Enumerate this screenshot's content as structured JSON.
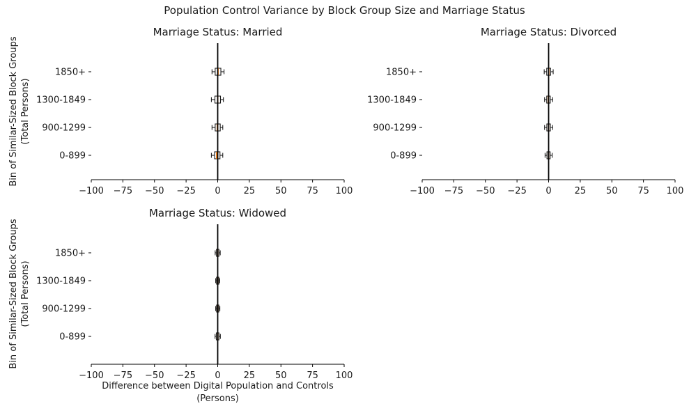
{
  "suptitle": "Population Control Variance by Block Group Size and Marriage Status",
  "axes": {
    "xlabel_line1": "Difference between Digital Population and Controls",
    "xlabel_line2": "(Persons)",
    "ylabel_line1": "Bin of Similar-Sized Block Groups",
    "ylabel_line2": "(Total Persons)"
  },
  "colors": {
    "median": "#ff7f0e",
    "box_edge": "#1c1c1c",
    "refline": "#000000",
    "spine": "#000000",
    "text": "#1a1a1a"
  },
  "chart_data": [
    {
      "type": "boxplot",
      "orientation": "horizontal",
      "title": "Marriage Status: Married",
      "categories": [
        "1850+",
        "1300-1849",
        "900-1299",
        "0-899"
      ],
      "xlim": [
        -100,
        100
      ],
      "xticks": [
        -100,
        -75,
        -50,
        -25,
        0,
        25,
        50,
        75,
        100
      ],
      "xtick_labels": [
        "−100",
        "−75",
        "−50",
        "−25",
        "0",
        "25",
        "50",
        "75",
        "100"
      ],
      "refline_x": 0,
      "grid": false,
      "boxes": [
        {
          "category": "1850+",
          "whislo": -4.5,
          "q1": -2.0,
          "med": 0.3,
          "q3": 2.5,
          "whishi": 5.0
        },
        {
          "category": "1300-1849",
          "whislo": -5.0,
          "q1": -2.2,
          "med": 0.0,
          "q3": 2.2,
          "whishi": 4.5
        },
        {
          "category": "900-1299",
          "whislo": -4.5,
          "q1": -2.0,
          "med": -0.3,
          "q3": 2.0,
          "whishi": 4.0
        },
        {
          "category": "0-899",
          "whislo": -5.0,
          "q1": -2.5,
          "med": -0.8,
          "q3": 1.8,
          "whishi": 4.0
        }
      ]
    },
    {
      "type": "boxplot",
      "orientation": "horizontal",
      "title": "Marriage Status: Divorced",
      "categories": [
        "1850+",
        "1300-1849",
        "900-1299",
        "0-899"
      ],
      "xlim": [
        -100,
        100
      ],
      "xticks": [
        -100,
        -75,
        -50,
        -25,
        0,
        25,
        50,
        75,
        100
      ],
      "xtick_labels": [
        "−100",
        "−75",
        "−50",
        "−25",
        "0",
        "25",
        "50",
        "75",
        "100"
      ],
      "refline_x": 0,
      "grid": false,
      "boxes": [
        {
          "category": "1850+",
          "whislo": -3.5,
          "q1": -1.5,
          "med": 0.2,
          "q3": 1.6,
          "whishi": 3.6
        },
        {
          "category": "1300-1849",
          "whislo": -3.2,
          "q1": -1.5,
          "med": -0.2,
          "q3": 1.3,
          "whishi": 3.2
        },
        {
          "category": "900-1299",
          "whislo": -3.2,
          "q1": -1.4,
          "med": 0.0,
          "q3": 1.4,
          "whishi": 3.2
        },
        {
          "category": "0-899",
          "whislo": -2.8,
          "q1": -1.3,
          "med": 0.0,
          "q3": 1.2,
          "whishi": 2.8
        }
      ]
    },
    {
      "type": "boxplot",
      "orientation": "horizontal",
      "title": "Marriage Status: Widowed",
      "categories": [
        "1850+",
        "1300-1849",
        "900-1299",
        "0-899"
      ],
      "xlim": [
        -100,
        100
      ],
      "xticks": [
        -100,
        -75,
        -50,
        -25,
        0,
        25,
        50,
        75,
        100
      ],
      "xtick_labels": [
        "−100",
        "−75",
        "−50",
        "−25",
        "0",
        "25",
        "50",
        "75",
        "100"
      ],
      "refline_x": 0,
      "grid": false,
      "boxes": [
        {
          "category": "1850+",
          "whislo": -2.0,
          "q1": -1.0,
          "med": 0.0,
          "q3": 1.0,
          "whishi": 2.0
        },
        {
          "category": "1300-1849",
          "whislo": -1.6,
          "q1": -0.9,
          "med": 0.0,
          "q3": 0.9,
          "whishi": 1.6
        },
        {
          "category": "900-1299",
          "whislo": -1.6,
          "q1": -0.9,
          "med": 0.0,
          "q3": 0.9,
          "whishi": 1.7
        },
        {
          "category": "0-899",
          "whislo": -2.1,
          "q1": -1.1,
          "med": 0.0,
          "q3": 1.0,
          "whishi": 2.1
        }
      ]
    }
  ]
}
